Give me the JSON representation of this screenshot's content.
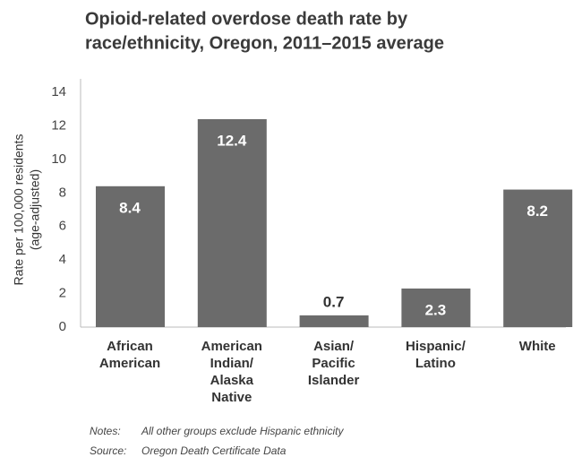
{
  "chart_data": {
    "type": "bar",
    "title": [
      "Opioid-related overdose death rate by",
      "race/ethnicity, Oregon, 2011–2015 average"
    ],
    "y_label": [
      "Rate per 100,000 residents",
      "(age-adjusted)"
    ],
    "categories": [
      [
        "African",
        "American"
      ],
      [
        "American",
        "Indian/",
        "Alaska",
        "Native"
      ],
      [
        "Asian/",
        "Pacific",
        "Islander"
      ],
      [
        "Hispanic/",
        "Latino"
      ],
      [
        "White"
      ]
    ],
    "values": [
      8.4,
      12.4,
      0.7,
      2.3,
      8.2
    ],
    "color": "#6b6b6b",
    "ylim": [
      0,
      14
    ],
    "yticks": [
      0,
      2,
      4,
      6,
      8,
      10,
      12,
      14
    ],
    "grid": false,
    "notes": [
      {
        "label": "Notes:",
        "text": "All other groups exclude Hispanic ethnicity"
      },
      {
        "label": "Source:",
        "text": "Oregon Death Certificate Data"
      }
    ]
  }
}
